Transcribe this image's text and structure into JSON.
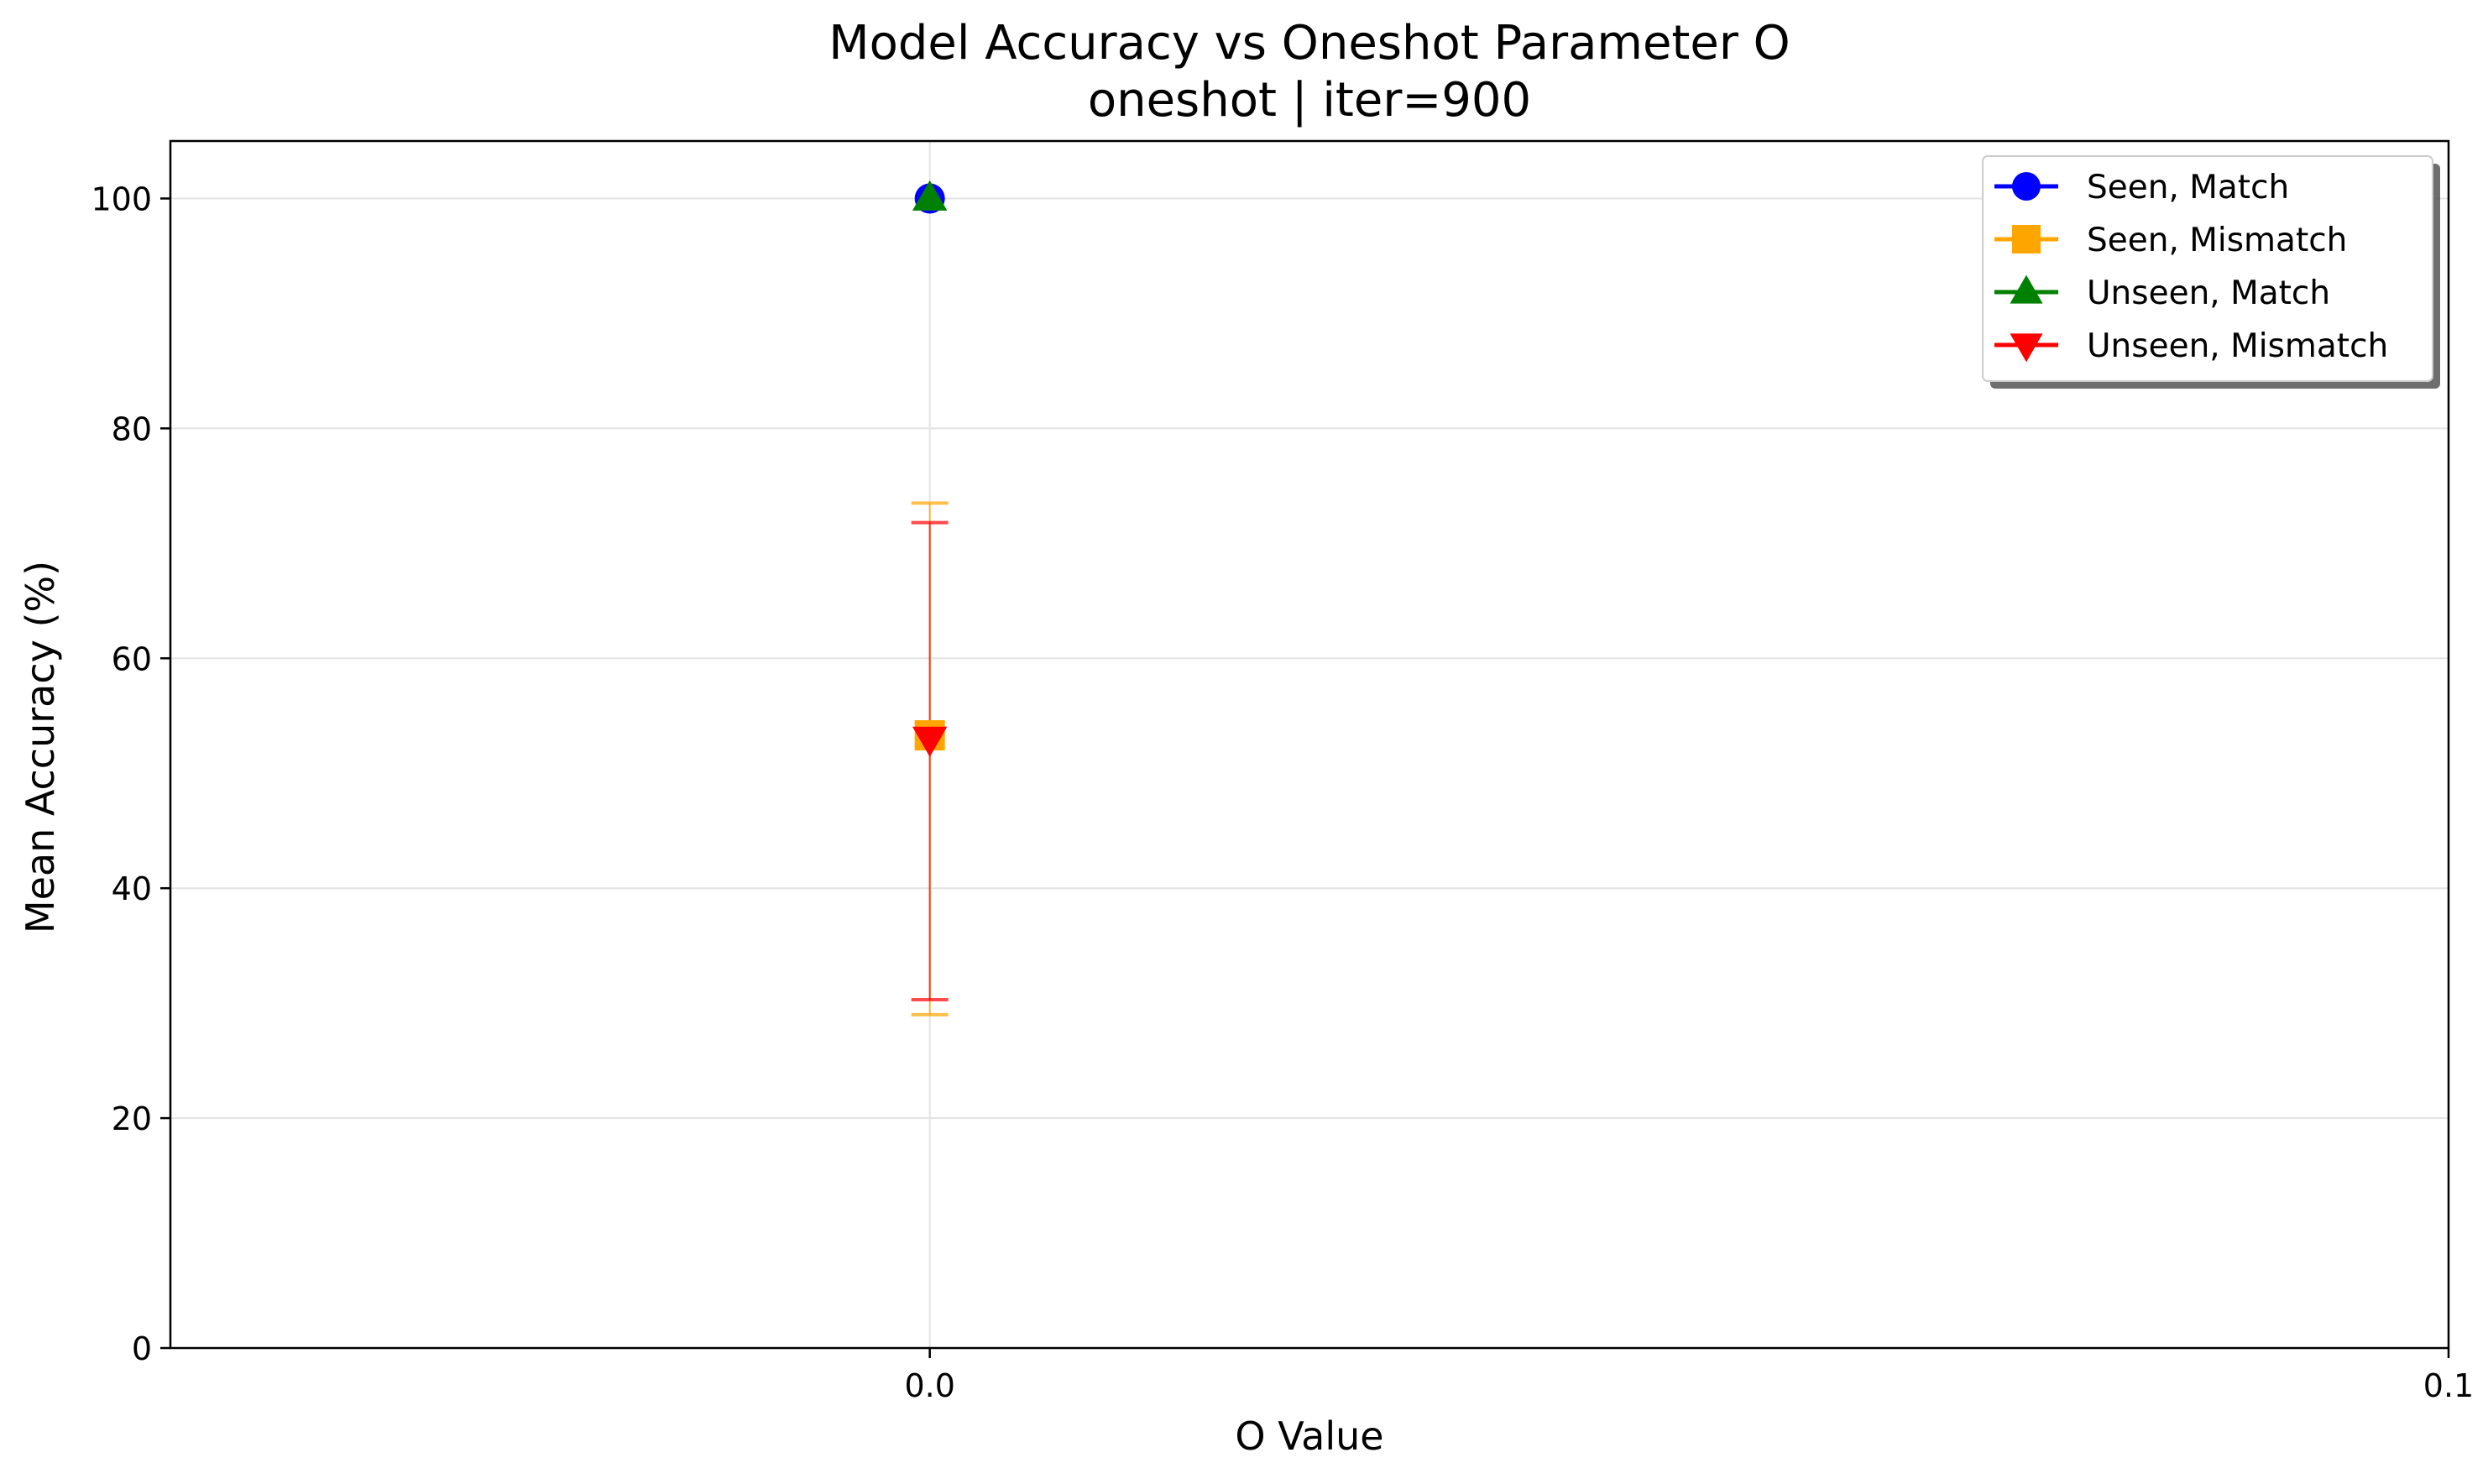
{
  "chart_data": {
    "type": "line",
    "title": "Model Accuracy vs Oneshot Parameter O",
    "subtitle": "oneshot | iter=900",
    "xlabel": "O Value",
    "ylabel": "Mean Accuracy (%)",
    "xlim": [
      -0.05,
      0.1
    ],
    "ylim": [
      0,
      105
    ],
    "xticks": [
      0.0,
      0.1
    ],
    "xtick_labels": [
      "0.0",
      "0.1"
    ],
    "yticks": [
      0,
      20,
      40,
      60,
      80,
      100
    ],
    "ytick_labels": [
      "0",
      "20",
      "40",
      "60",
      "80",
      "100"
    ],
    "grid": true,
    "legend_position": "top-right",
    "series": [
      {
        "name": "Seen, Match",
        "color": "#0000ff",
        "marker": "circle",
        "x": [
          0.0
        ],
        "y": [
          100.0
        ],
        "err_low": [
          100.0
        ],
        "err_high": [
          100.0
        ]
      },
      {
        "name": "Seen, Mismatch",
        "color": "#ffa500",
        "marker": "square",
        "x": [
          0.0
        ],
        "y": [
          53.3
        ],
        "err_low": [
          29.0
        ],
        "err_high": [
          73.5
        ]
      },
      {
        "name": "Unseen, Match",
        "color": "#008000",
        "marker": "triangle-up",
        "x": [
          0.0
        ],
        "y": [
          100.0
        ],
        "err_low": [
          100.0
        ],
        "err_high": [
          100.0
        ]
      },
      {
        "name": "Unseen, Mismatch",
        "color": "#ff0000",
        "marker": "triangle-down",
        "x": [
          0.0
        ],
        "y": [
          53.0
        ],
        "err_low": [
          30.3
        ],
        "err_high": [
          71.8
        ]
      }
    ]
  }
}
